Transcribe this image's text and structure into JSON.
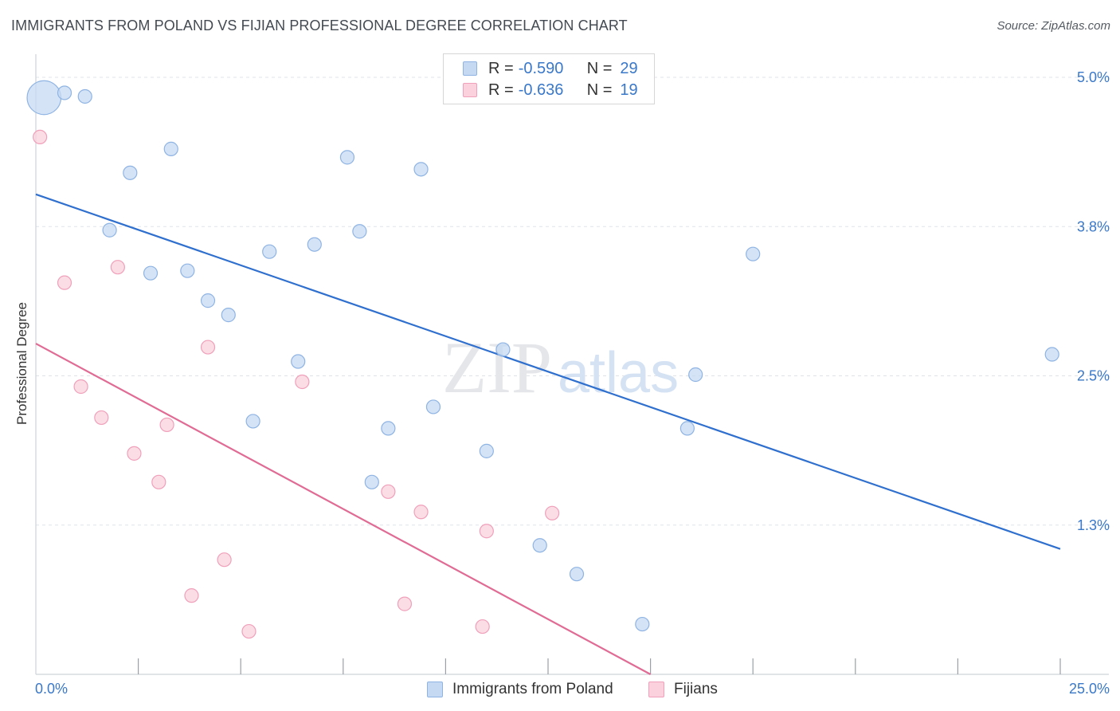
{
  "title": "IMMIGRANTS FROM POLAND VS FIJIAN PROFESSIONAL DEGREE CORRELATION CHART",
  "source": "Source: ZipAtlas.com",
  "watermark": {
    "zip": "ZIP",
    "atlas": "atlas"
  },
  "legend": {
    "rows": [
      {
        "r_label": "R =",
        "r_value": "-0.590",
        "n_label": "N =",
        "n_value": "29"
      },
      {
        "r_label": "R =",
        "r_value": "-0.636",
        "n_label": "N =",
        "n_value": "19"
      }
    ]
  },
  "bottom_legend": [
    "Immigrants from Poland",
    "Fijians"
  ],
  "colors": {
    "poland_fill": "#c5d9f3",
    "poland_stroke": "#8fb4e3",
    "poland_line": "#2f6fce",
    "fijian_fill": "#fad1dd",
    "fijian_stroke": "#f0a0ba",
    "fijian_line": "#e06b94",
    "tick_label": "#3a78c9",
    "grid": "#dfe3e8"
  },
  "chart_data": {
    "type": "scatter",
    "title": "IMMIGRANTS FROM POLAND VS FIJIAN PROFESSIONAL DEGREE CORRELATION CHART",
    "xlabel": "",
    "ylabel": "Professional Degree",
    "xlim": [
      0,
      25
    ],
    "ylim": [
      0,
      5.0
    ],
    "x_tick_labels": [
      "0.0%",
      "25.0%"
    ],
    "y_ticks": [
      1.25,
      2.5,
      3.75,
      5.0
    ],
    "y_tick_labels": [
      "1.3%",
      "2.5%",
      "3.8%",
      "5.0%"
    ],
    "grid": "horizontal-dashed",
    "legend_position": "top-center",
    "series": [
      {
        "name": "Immigrants from Poland",
        "points": [
          [
            0.2,
            4.83,
            2.5
          ],
          [
            0.7,
            4.87,
            1
          ],
          [
            1.2,
            4.84,
            1
          ],
          [
            3.3,
            4.4,
            1
          ],
          [
            2.3,
            4.2,
            1
          ],
          [
            1.8,
            3.72,
            1
          ],
          [
            2.8,
            3.36,
            1
          ],
          [
            3.7,
            3.38,
            1
          ],
          [
            4.2,
            3.13,
            1
          ],
          [
            4.7,
            3.01,
            1
          ],
          [
            5.7,
            3.54,
            1
          ],
          [
            6.8,
            3.6,
            1
          ],
          [
            7.6,
            4.33,
            1
          ],
          [
            7.9,
            3.71,
            1
          ],
          [
            9.4,
            4.23,
            1
          ],
          [
            6.4,
            2.62,
            1
          ],
          [
            5.3,
            2.12,
            1
          ],
          [
            8.6,
            2.06,
            1
          ],
          [
            9.7,
            2.24,
            1
          ],
          [
            11.4,
            2.72,
            1
          ],
          [
            11.0,
            1.87,
            1
          ],
          [
            8.2,
            1.61,
            1
          ],
          [
            12.3,
            1.08,
            1
          ],
          [
            13.2,
            0.84,
            1
          ],
          [
            14.8,
            0.42,
            1
          ],
          [
            16.1,
            2.51,
            1
          ],
          [
            15.9,
            2.06,
            1
          ],
          [
            17.5,
            3.52,
            1
          ],
          [
            24.8,
            2.68,
            1
          ]
        ],
        "trend": {
          "x": [
            0,
            25
          ],
          "y": [
            4.02,
            1.05
          ]
        }
      },
      {
        "name": "Fijians",
        "points": [
          [
            0.1,
            4.5,
            1
          ],
          [
            0.7,
            3.28,
            1
          ],
          [
            2.0,
            3.41,
            1
          ],
          [
            1.1,
            2.41,
            1
          ],
          [
            1.6,
            2.15,
            1
          ],
          [
            2.4,
            1.85,
            1
          ],
          [
            3.0,
            1.61,
            1
          ],
          [
            3.2,
            2.09,
            1
          ],
          [
            4.2,
            2.74,
            1
          ],
          [
            6.5,
            2.45,
            1
          ],
          [
            4.6,
            0.96,
            1
          ],
          [
            3.8,
            0.66,
            1
          ],
          [
            5.2,
            0.36,
            1
          ],
          [
            8.6,
            1.53,
            1
          ],
          [
            9.4,
            1.36,
            1
          ],
          [
            9.0,
            0.59,
            1
          ],
          [
            10.9,
            0.4,
            1
          ],
          [
            11.0,
            1.2,
            1
          ],
          [
            12.6,
            1.35,
            1
          ]
        ],
        "trend": {
          "x": [
            0,
            15
          ],
          "y": [
            2.77,
            0.0
          ]
        }
      }
    ]
  }
}
